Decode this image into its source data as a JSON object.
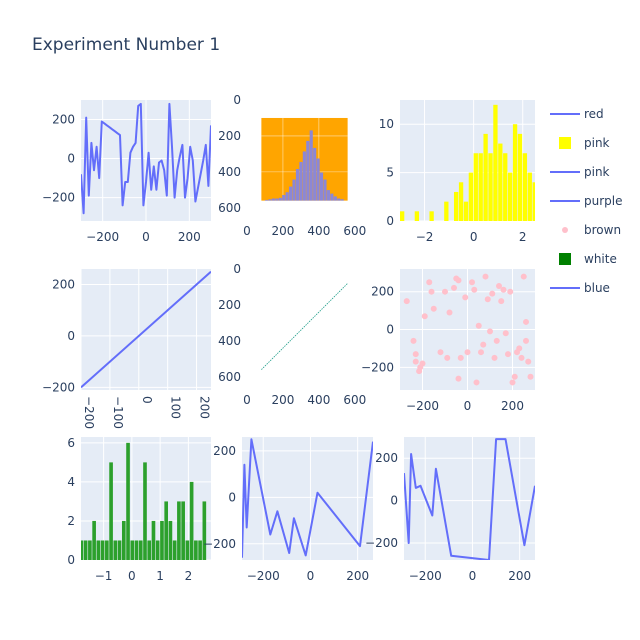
{
  "title": "Experiment Number 1",
  "colors": {
    "plot_bg": "#e5ecf6",
    "grid": "#ffffff",
    "line": "#636efa",
    "yellow": "#ffff00",
    "green": "#2ca02c",
    "orange": "#ffa500",
    "pink": "#ffc0cb",
    "legend_green": "#008000",
    "purple_hist": "#8c87d6"
  },
  "legend": [
    {
      "name": "red",
      "symbol": "line",
      "color": "#636efa"
    },
    {
      "name": "pink",
      "symbol": "square",
      "color": "#ffff00"
    },
    {
      "name": "pink",
      "symbol": "line",
      "color": "#636efa"
    },
    {
      "name": "purple",
      "symbol": "line",
      "color": "#636efa"
    },
    {
      "name": "brown",
      "symbol": "dot",
      "color": "#ffc0cb"
    },
    {
      "name": "white",
      "symbol": "square",
      "color": "#008000"
    },
    {
      "name": "blue",
      "symbol": "line",
      "color": "#636efa"
    }
  ],
  "chart_data": [
    {
      "id": "r1c1",
      "type": "line",
      "xlim": [
        -300,
        300
      ],
      "ylim": [
        -320,
        300
      ],
      "xticks": [
        -200,
        0,
        200
      ],
      "yticks": [
        -200,
        0,
        200
      ],
      "x": [
        -300,
        -288,
        -276,
        -264,
        -252,
        -240,
        -228,
        -216,
        -204,
        -192,
        -180,
        -168,
        -156,
        -144,
        -132,
        -120,
        -108,
        -96,
        -84,
        -72,
        -60,
        -48,
        -36,
        -24,
        -12,
        0,
        12,
        24,
        36,
        48,
        60,
        72,
        84,
        96,
        108,
        120,
        132,
        144,
        156,
        168,
        180,
        192,
        204,
        216,
        228,
        240,
        252,
        264,
        276,
        288,
        300
      ],
      "y": [
        -80,
        -280,
        210,
        -190,
        80,
        -60,
        60,
        -100,
        190,
        180,
        170,
        160,
        150,
        140,
        130,
        120,
        -240,
        -120,
        -120,
        30,
        60,
        80,
        270,
        280,
        -240,
        -120,
        30,
        -160,
        -40,
        -160,
        -20,
        -10,
        -60,
        -190,
        280,
        60,
        -200,
        -60,
        10,
        70,
        -200,
        -100,
        60,
        -10,
        -220,
        -150,
        -80,
        -10,
        70,
        -140,
        170
      ]
    },
    {
      "id": "r1c2",
      "type": "image",
      "description_source": "image",
      "xlim": [
        0,
        640
      ],
      "ylim": [
        640,
        0
      ],
      "xticks": [
        0,
        200,
        400,
        600
      ],
      "yticks": [
        0,
        200,
        400,
        600
      ],
      "image_extent": {
        "x": [
          80,
          560
        ],
        "y": [
          100,
          560
        ]
      },
      "hist_bins": [
        0.01,
        0.02,
        0.03,
        0.03,
        0.04,
        0.08,
        0.12,
        0.2,
        0.3,
        0.45,
        0.55,
        0.7,
        0.85,
        1.0,
        0.75,
        0.6,
        0.4,
        0.3,
        0.15,
        0.1,
        0.06,
        0.03,
        0.02
      ]
    },
    {
      "id": "r1c3",
      "type": "bar",
      "xlim": [
        -3,
        2.5
      ],
      "ylim": [
        0,
        12.5
      ],
      "xticks": [
        -2,
        0,
        2
      ],
      "yticks": [
        0,
        5,
        10
      ],
      "bin_width": 0.2,
      "bin_start": -3.0,
      "values": [
        1,
        0,
        0,
        1,
        0,
        0,
        1,
        0,
        0,
        2,
        0,
        3,
        4,
        2,
        5,
        7,
        7,
        9,
        7,
        12,
        8,
        7,
        5,
        10,
        9,
        7,
        5,
        4,
        3,
        2,
        1,
        1
      ]
    },
    {
      "id": "r2c1",
      "type": "line",
      "xlim": [
        -200,
        250
      ],
      "ylim": [
        -210,
        260
      ],
      "xticks": [
        -200,
        -100,
        0,
        100,
        200
      ],
      "yticks": [
        -200,
        0,
        200
      ],
      "x": [
        -200,
        250
      ],
      "y": [
        -200,
        250
      ]
    },
    {
      "id": "r2c2",
      "type": "image",
      "xlim": [
        0,
        640
      ],
      "ylim": [
        640,
        0
      ],
      "xticks": [
        0,
        200,
        400,
        600
      ],
      "yticks": [
        0,
        200,
        400,
        600
      ],
      "diagonal": {
        "x": [
          80,
          560
        ],
        "y": [
          560,
          80
        ]
      }
    },
    {
      "id": "r2c3",
      "type": "scatter",
      "xlim": [
        -300,
        300
      ],
      "ylim": [
        -320,
        320
      ],
      "xticks": [
        -200,
        0,
        200
      ],
      "yticks": [
        -200,
        0,
        200
      ],
      "points": [
        [
          -270,
          150
        ],
        [
          -240,
          -60
        ],
        [
          -230,
          -130
        ],
        [
          -230,
          -170
        ],
        [
          -215,
          -220
        ],
        [
          -210,
          -200
        ],
        [
          -200,
          -180
        ],
        [
          -190,
          70
        ],
        [
          -170,
          250
        ],
        [
          -160,
          200
        ],
        [
          -150,
          110
        ],
        [
          -120,
          -120
        ],
        [
          -100,
          200
        ],
        [
          -90,
          -150
        ],
        [
          -80,
          90
        ],
        [
          -60,
          220
        ],
        [
          -50,
          270
        ],
        [
          -40,
          -260
        ],
        [
          -40,
          260
        ],
        [
          -30,
          -150
        ],
        [
          -10,
          170
        ],
        [
          0,
          -120
        ],
        [
          20,
          250
        ],
        [
          30,
          210
        ],
        [
          40,
          -280
        ],
        [
          50,
          20
        ],
        [
          60,
          -120
        ],
        [
          70,
          -80
        ],
        [
          80,
          280
        ],
        [
          90,
          160
        ],
        [
          100,
          -10
        ],
        [
          110,
          190
        ],
        [
          120,
          -150
        ],
        [
          130,
          -60
        ],
        [
          140,
          230
        ],
        [
          150,
          150
        ],
        [
          160,
          210
        ],
        [
          170,
          -20
        ],
        [
          180,
          -130
        ],
        [
          190,
          200
        ],
        [
          200,
          -280
        ],
        [
          210,
          -250
        ],
        [
          220,
          -120
        ],
        [
          230,
          -100
        ],
        [
          240,
          -150
        ],
        [
          250,
          280
        ],
        [
          260,
          40
        ],
        [
          260,
          -60
        ],
        [
          270,
          -170
        ],
        [
          280,
          -250
        ]
      ]
    },
    {
      "id": "r3c1",
      "type": "bar",
      "xlim": [
        -1.8,
        2.8
      ],
      "ylim": [
        0,
        6.3
      ],
      "xticks": [
        -1,
        0,
        1,
        2
      ],
      "yticks": [
        0,
        2,
        4,
        6
      ],
      "bin_width": 0.15,
      "bin_start": -1.85,
      "values": [
        1,
        1,
        1,
        2,
        1,
        1,
        1,
        5,
        1,
        1,
        2,
        6,
        1,
        1,
        1,
        5,
        1,
        2,
        1,
        2,
        3,
        2,
        1,
        3,
        3,
        1,
        4,
        1,
        1,
        3,
        0,
        1,
        0,
        0,
        1
      ]
    },
    {
      "id": "r3c2",
      "type": "line",
      "xlim": [
        -290,
        265
      ],
      "ylim": [
        -270,
        260
      ],
      "xticks": [
        -200,
        0,
        200
      ],
      "yticks": [
        -200,
        0,
        200
      ],
      "x": [
        -290,
        -280,
        -270,
        -250,
        -170,
        -140,
        -90,
        -70,
        -20,
        30,
        210,
        265
      ],
      "y": [
        -260,
        140,
        -130,
        250,
        -160,
        -60,
        -240,
        -90,
        -250,
        20,
        -210,
        240
      ]
    },
    {
      "id": "r3c3",
      "type": "line",
      "xlim": [
        -290,
        265
      ],
      "ylim": [
        -280,
        300
      ],
      "xticks": [
        -200,
        0,
        200
      ],
      "yticks": [
        -200,
        0,
        200
      ],
      "x": [
        -290,
        -270,
        -260,
        -240,
        -220,
        -170,
        -155,
        -90,
        70,
        100,
        140,
        220,
        265
      ],
      "y": [
        130,
        -200,
        220,
        60,
        70,
        -70,
        150,
        -260,
        -280,
        290,
        290,
        -210,
        70
      ]
    }
  ]
}
